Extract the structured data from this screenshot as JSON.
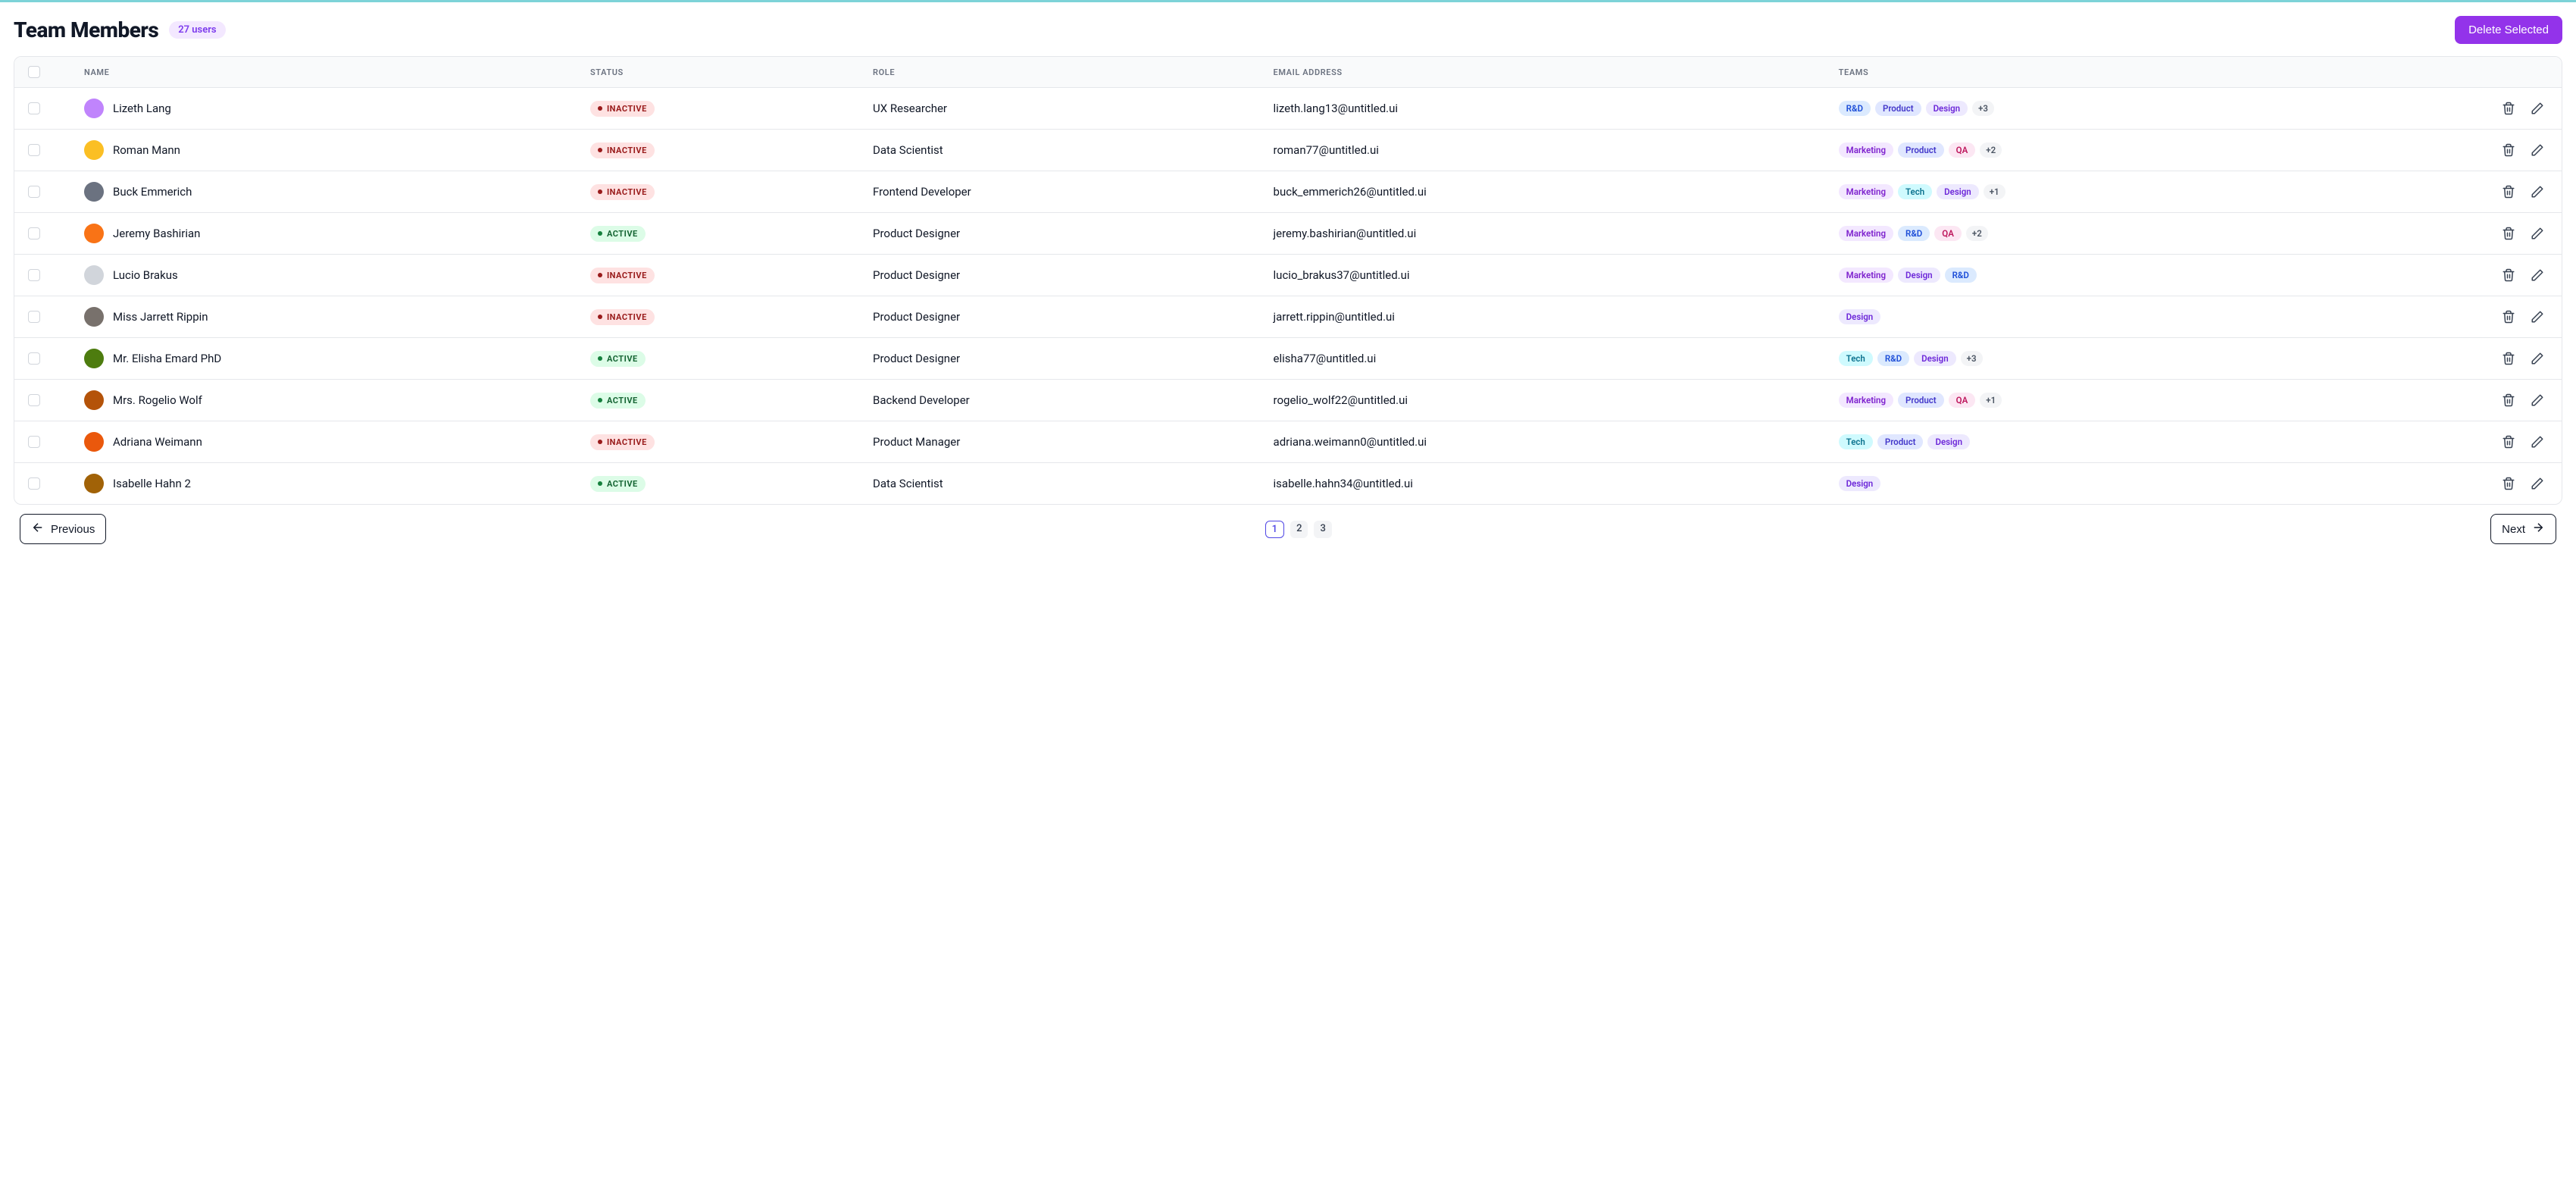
{
  "header": {
    "title": "Team Members",
    "user_count_label": "27 users",
    "delete_label": "Delete Selected"
  },
  "columns": {
    "name": "NAME",
    "status": "STATUS",
    "role": "ROLE",
    "email": "EMAIL ADDRESS",
    "teams": "TEAMS"
  },
  "status_labels": {
    "active": "ACTIVE",
    "inactive": "INACTIVE"
  },
  "team_styles": {
    "R&D": {
      "bg": "#dbeafe",
      "fg": "#1d4ed8"
    },
    "Product": {
      "bg": "#e0e7ff",
      "fg": "#4338ca"
    },
    "Design": {
      "bg": "#ede9fe",
      "fg": "#6d28d9"
    },
    "Marketing": {
      "bg": "#f3e8ff",
      "fg": "#7e22ce"
    },
    "QA": {
      "bg": "#fce7f3",
      "fg": "#be185d"
    },
    "Tech": {
      "bg": "#cffafe",
      "fg": "#0e7490"
    }
  },
  "members": [
    {
      "name": "Lizeth Lang",
      "status": "inactive",
      "role": "UX Researcher",
      "email": "lizeth.lang13@untitled.ui",
      "teams": [
        "R&D",
        "Product",
        "Design"
      ],
      "extra": "+3",
      "avatar": "#c084fc"
    },
    {
      "name": "Roman Mann",
      "status": "inactive",
      "role": "Data Scientist",
      "email": "roman77@untitled.ui",
      "teams": [
        "Marketing",
        "Product",
        "QA"
      ],
      "extra": "+2",
      "avatar": "#fbbf24"
    },
    {
      "name": "Buck Emmerich",
      "status": "inactive",
      "role": "Frontend Developer",
      "email": "buck_emmerich26@untitled.ui",
      "teams": [
        "Marketing",
        "Tech",
        "Design"
      ],
      "extra": "+1",
      "avatar": "#6b7280"
    },
    {
      "name": "Jeremy Bashirian",
      "status": "active",
      "role": "Product Designer",
      "email": "jeremy.bashirian@untitled.ui",
      "teams": [
        "Marketing",
        "R&D",
        "QA"
      ],
      "extra": "+2",
      "avatar": "#f97316"
    },
    {
      "name": "Lucio Brakus",
      "status": "inactive",
      "role": "Product Designer",
      "email": "lucio_brakus37@untitled.ui",
      "teams": [
        "Marketing",
        "Design",
        "R&D"
      ],
      "extra": null,
      "avatar": "#d1d5db"
    },
    {
      "name": "Miss Jarrett Rippin",
      "status": "inactive",
      "role": "Product Designer",
      "email": "jarrett.rippin@untitled.ui",
      "teams": [
        "Design"
      ],
      "extra": null,
      "avatar": "#78716c"
    },
    {
      "name": "Mr. Elisha Emard PhD",
      "status": "active",
      "role": "Product Designer",
      "email": "elisha77@untitled.ui",
      "teams": [
        "Tech",
        "R&D",
        "Design"
      ],
      "extra": "+3",
      "avatar": "#4d7c0f"
    },
    {
      "name": "Mrs. Rogelio Wolf",
      "status": "active",
      "role": "Backend Developer",
      "email": "rogelio_wolf22@untitled.ui",
      "teams": [
        "Marketing",
        "Product",
        "QA"
      ],
      "extra": "+1",
      "avatar": "#b45309"
    },
    {
      "name": "Adriana Weimann",
      "status": "inactive",
      "role": "Product Manager",
      "email": "adriana.weimann0@untitled.ui",
      "teams": [
        "Tech",
        "Product",
        "Design"
      ],
      "extra": null,
      "avatar": "#ea580c"
    },
    {
      "name": "Isabelle Hahn 2",
      "status": "active",
      "role": "Data Scientist",
      "email": "isabelle.hahn34@untitled.ui",
      "teams": [
        "Design"
      ],
      "extra": null,
      "avatar": "#a16207"
    }
  ],
  "pagination": {
    "prev": "Previous",
    "next": "Next",
    "pages": [
      "1",
      "2",
      "3"
    ],
    "active_index": 0
  },
  "colors": {
    "accent": "#9333ea",
    "border": "#e5e7eb",
    "header_bg": "#f9fafb"
  }
}
